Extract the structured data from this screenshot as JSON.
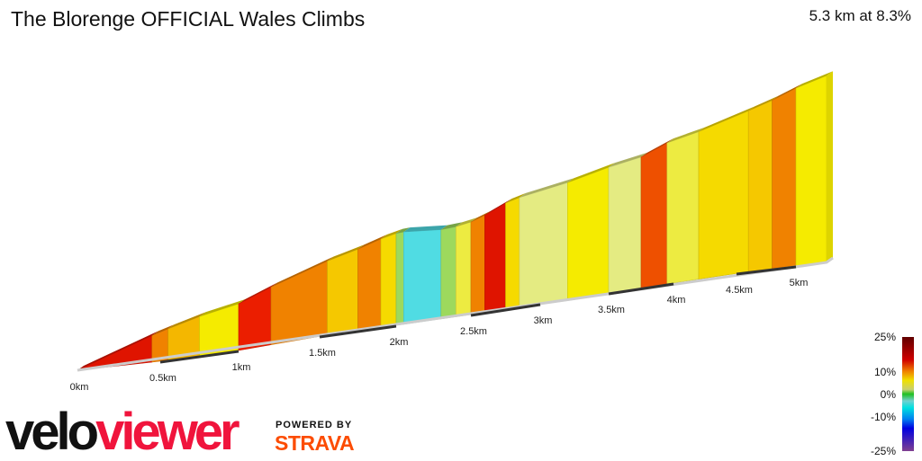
{
  "header": {
    "title": "The Blorenge OFFICIAL Wales Climbs",
    "summary": "5.3 km at 8.3%"
  },
  "branding": {
    "logo_part1": "velo",
    "logo_part2": "viewer",
    "powered_by": "POWERED BY",
    "strava": "STRAVA"
  },
  "chart_data": {
    "type": "area",
    "title": "The Blorenge OFFICIAL Wales Climbs",
    "xlabel": "",
    "ylabel": "",
    "x_tick_labels": [
      "0km",
      "0.5km",
      "1km",
      "1.5km",
      "2km",
      "2.5km",
      "3km",
      "3.5km",
      "4km",
      "4.5km",
      "5km"
    ],
    "distance_km": 5.3,
    "avg_gradient_pct": 8.3,
    "segments": [
      {
        "from": 0,
        "to": 0.45,
        "gradient": 14
      },
      {
        "from": 0.45,
        "to": 0.55,
        "gradient": 11
      },
      {
        "from": 0.55,
        "to": 0.75,
        "gradient": 9.5
      },
      {
        "from": 0.75,
        "to": 1.0,
        "gradient": 7
      },
      {
        "from": 1.0,
        "to": 1.2,
        "gradient": 13
      },
      {
        "from": 1.2,
        "to": 1.55,
        "gradient": 11
      },
      {
        "from": 1.55,
        "to": 1.75,
        "gradient": 9
      },
      {
        "from": 1.75,
        "to": 1.9,
        "gradient": 11
      },
      {
        "from": 1.9,
        "to": 2.0,
        "gradient": 8
      },
      {
        "from": 2.0,
        "to": 2.05,
        "gradient": 2
      },
      {
        "from": 2.05,
        "to": 2.3,
        "gradient": -3
      },
      {
        "from": 2.3,
        "to": 2.4,
        "gradient": 2
      },
      {
        "from": 2.4,
        "to": 2.5,
        "gradient": 6
      },
      {
        "from": 2.5,
        "to": 2.6,
        "gradient": 11
      },
      {
        "from": 2.6,
        "to": 2.75,
        "gradient": 14
      },
      {
        "from": 2.75,
        "to": 2.85,
        "gradient": 8
      },
      {
        "from": 2.85,
        "to": 3.2,
        "gradient": 5
      },
      {
        "from": 3.2,
        "to": 3.5,
        "gradient": 7
      },
      {
        "from": 3.5,
        "to": 3.75,
        "gradient": 5
      },
      {
        "from": 3.75,
        "to": 3.95,
        "gradient": 12
      },
      {
        "from": 3.95,
        "to": 4.2,
        "gradient": 6
      },
      {
        "from": 4.2,
        "to": 4.6,
        "gradient": 8
      },
      {
        "from": 4.6,
        "to": 4.8,
        "gradient": 9
      },
      {
        "from": 4.8,
        "to": 5.0,
        "gradient": 11
      },
      {
        "from": 5.0,
        "to": 5.3,
        "gradient": 7
      }
    ],
    "legend": {
      "placement": "bottom-right",
      "labels": [
        "25%",
        "10%",
        "0%",
        "-10%",
        "-25%"
      ],
      "range": [
        -25,
        25
      ]
    }
  }
}
